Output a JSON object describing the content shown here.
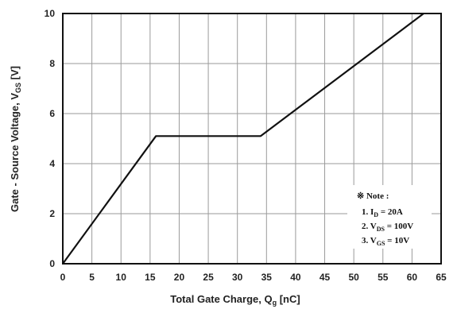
{
  "chart_data": {
    "type": "line",
    "xlabel": "Total Gate Charge, Q",
    "xlabel_sub": "g",
    "xlabel_unit": " [nC]",
    "ylabel": "Gate - Source Voltage, V",
    "ylabel_sub": "GS",
    "ylabel_unit": " [V]",
    "xlim": [
      0,
      65
    ],
    "ylim": [
      0,
      10
    ],
    "x_ticks": [
      "0",
      "5",
      "10",
      "15",
      "20",
      "25",
      "30",
      "35",
      "40",
      "45",
      "50",
      "55",
      "60",
      "65"
    ],
    "y_ticks": [
      "0",
      "2",
      "4",
      "6",
      "8",
      "10"
    ],
    "grid": true,
    "series": [
      {
        "x": [
          0,
          16,
          34,
          62
        ],
        "y": [
          0,
          5.1,
          5.1,
          10
        ]
      }
    ],
    "note": {
      "title": "※ Note :",
      "lines": [
        {
          "prefix": "1. I",
          "sub": "D",
          "suffix": " = 20A"
        },
        {
          "prefix": "2. V",
          "sub": "DS",
          "suffix": " = 100V"
        },
        {
          "prefix": "3. V",
          "sub": "GS",
          "suffix": " = 10V"
        }
      ]
    }
  }
}
